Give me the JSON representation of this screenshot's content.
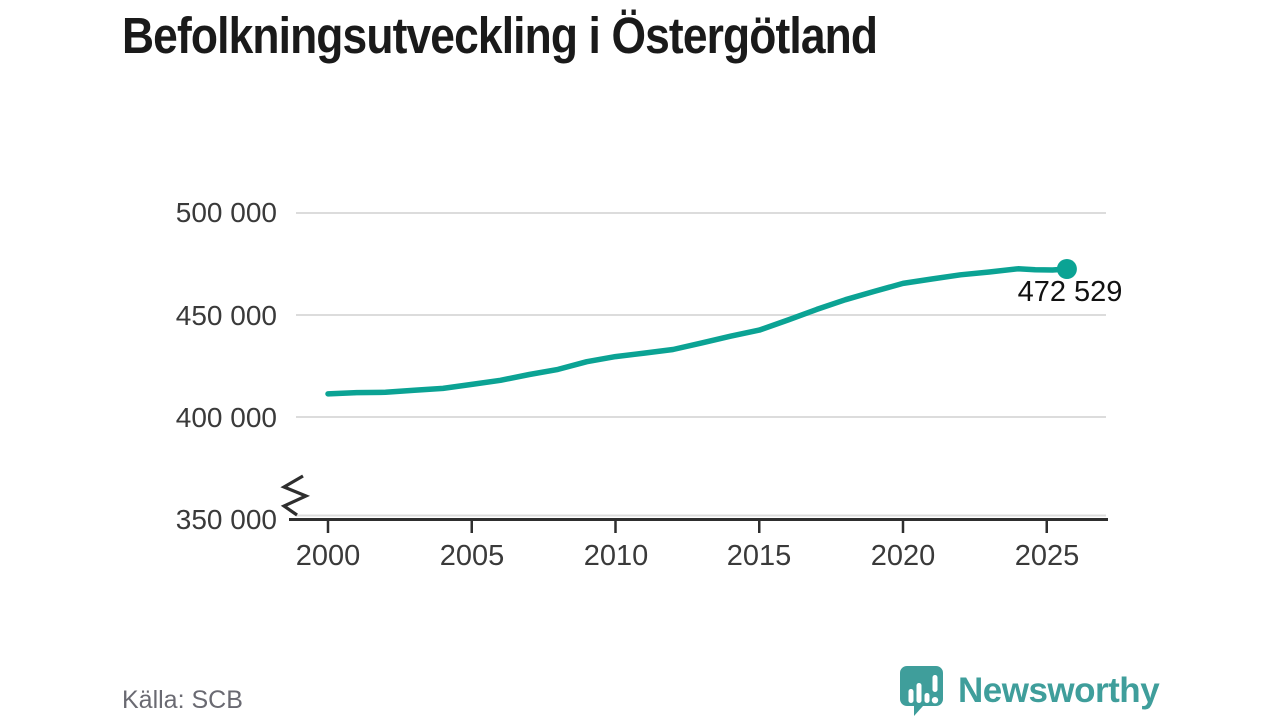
{
  "footer": {
    "source_label": "Källa: SCB",
    "brand_name": "Newsworthy"
  },
  "colors": {
    "line": "#0ba394",
    "dot": "#0ba394",
    "grid": "#dcdcdc",
    "axis": "#2e2e2e",
    "title_text": "#1a1a1a",
    "tick_text": "#3a3a3a",
    "annotation_text": "#111111",
    "source_text": "#6a6a72",
    "brand_teal": "#3f9e9b"
  },
  "chart_data": {
    "type": "line",
    "title": "Befolkningsutveckling i Östergötland",
    "xlabel": "",
    "ylabel": "",
    "legend": "none",
    "grid": "horizontal",
    "y_axis_break": true,
    "xlim": [
      1998.9,
      2027.1
    ],
    "ylim": [
      350000,
      500000
    ],
    "xticks": [
      2000,
      2005,
      2010,
      2015,
      2020,
      2025
    ],
    "xtick_labels": [
      "2000",
      "2005",
      "2010",
      "2015",
      "2020",
      "2025"
    ],
    "yticks": [
      500000,
      450000,
      400000,
      350000
    ],
    "ytick_labels": [
      "500 000",
      "450 000",
      "400 000",
      "350 000"
    ],
    "end_label": "472 529",
    "end_value": 472529,
    "series": [
      {
        "points": [
          [
            2000,
            411345
          ],
          [
            2001,
            411952
          ],
          [
            2002,
            412112
          ],
          [
            2003,
            413107
          ],
          [
            2004,
            414011
          ],
          [
            2005,
            415990
          ],
          [
            2006,
            417966
          ],
          [
            2007,
            420809
          ],
          [
            2008,
            423336
          ],
          [
            2009,
            427122
          ],
          [
            2010,
            429627
          ],
          [
            2011,
            431303
          ],
          [
            2012,
            433089
          ],
          [
            2013,
            436325
          ],
          [
            2014,
            439616
          ],
          [
            2015,
            442605
          ],
          [
            2016,
            447550
          ],
          [
            2017,
            452762
          ],
          [
            2018,
            457496
          ],
          [
            2019,
            461583
          ],
          [
            2020,
            465495
          ],
          [
            2021,
            467660
          ],
          [
            2022,
            469704
          ],
          [
            2023,
            471061
          ],
          [
            2024,
            472639
          ],
          [
            2024.6,
            472150
          ],
          [
            2025.2,
            472050
          ],
          [
            2025.7,
            472529
          ]
        ]
      }
    ]
  }
}
